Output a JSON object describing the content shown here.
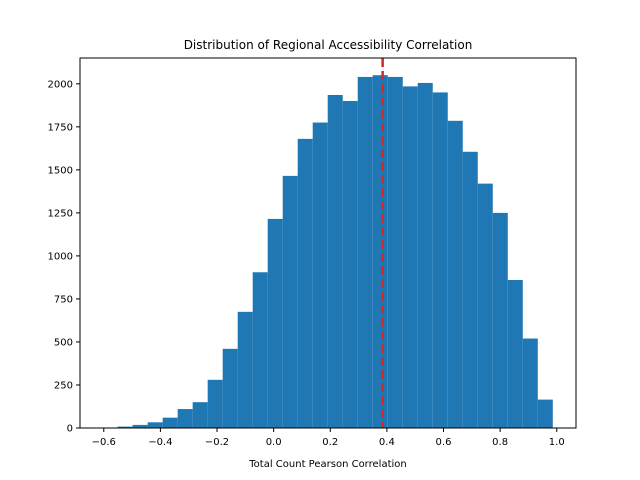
{
  "chart_data": {
    "type": "bar",
    "title": "Distribution of Regional Accessibility Correlation",
    "xlabel": "Total Count Pearson Correlation",
    "ylabel": "",
    "xlim": [
      -0.684,
      1.068
    ],
    "ylim": [
      0,
      2150
    ],
    "xticks": [
      -0.6,
      -0.4,
      -0.2,
      0.0,
      0.2,
      0.4,
      0.6,
      0.8,
      1.0
    ],
    "xtick_labels": [
      "−0.6",
      "−0.4",
      "−0.2",
      "0.0",
      "0.2",
      "0.4",
      "0.6",
      "0.8",
      "1.0"
    ],
    "yticks": [
      0,
      250,
      500,
      750,
      1000,
      1250,
      1500,
      1750,
      2000
    ],
    "ytick_labels": [
      "0",
      "250",
      "500",
      "750",
      "1000",
      "1250",
      "1500",
      "1750",
      "2000"
    ],
    "bins": [
      {
        "x0": -0.604,
        "x1": -0.551,
        "count": 3
      },
      {
        "x0": -0.551,
        "x1": -0.498,
        "count": 8
      },
      {
        "x0": -0.498,
        "x1": -0.445,
        "count": 18
      },
      {
        "x0": -0.445,
        "x1": -0.392,
        "count": 33
      },
      {
        "x0": -0.392,
        "x1": -0.339,
        "count": 60
      },
      {
        "x0": -0.339,
        "x1": -0.286,
        "count": 110
      },
      {
        "x0": -0.286,
        "x1": -0.233,
        "count": 150
      },
      {
        "x0": -0.233,
        "x1": -0.18,
        "count": 280
      },
      {
        "x0": -0.18,
        "x1": -0.127,
        "count": 460
      },
      {
        "x0": -0.127,
        "x1": -0.074,
        "count": 675
      },
      {
        "x0": -0.074,
        "x1": -0.021,
        "count": 905
      },
      {
        "x0": -0.021,
        "x1": 0.032,
        "count": 1215
      },
      {
        "x0": 0.032,
        "x1": 0.085,
        "count": 1465
      },
      {
        "x0": 0.085,
        "x1": 0.138,
        "count": 1680
      },
      {
        "x0": 0.138,
        "x1": 0.191,
        "count": 1775
      },
      {
        "x0": 0.191,
        "x1": 0.244,
        "count": 1935
      },
      {
        "x0": 0.244,
        "x1": 0.297,
        "count": 1900
      },
      {
        "x0": 0.297,
        "x1": 0.35,
        "count": 2040
      },
      {
        "x0": 0.35,
        "x1": 0.403,
        "count": 2050
      },
      {
        "x0": 0.403,
        "x1": 0.456,
        "count": 2040
      },
      {
        "x0": 0.456,
        "x1": 0.509,
        "count": 1985
      },
      {
        "x0": 0.509,
        "x1": 0.562,
        "count": 2005
      },
      {
        "x0": 0.562,
        "x1": 0.615,
        "count": 1950
      },
      {
        "x0": 0.615,
        "x1": 0.668,
        "count": 1785
      },
      {
        "x0": 0.668,
        "x1": 0.721,
        "count": 1605
      },
      {
        "x0": 0.721,
        "x1": 0.774,
        "count": 1420
      },
      {
        "x0": 0.774,
        "x1": 0.827,
        "count": 1250
      },
      {
        "x0": 0.827,
        "x1": 0.88,
        "count": 860
      },
      {
        "x0": 0.88,
        "x1": 0.933,
        "count": 520
      },
      {
        "x0": 0.933,
        "x1": 0.986,
        "count": 165
      }
    ],
    "reference_line": {
      "x": 0.385,
      "style": "dashed",
      "color": "#d62728"
    },
    "bar_color": "#1f77b4",
    "grid": false,
    "legend": "none"
  }
}
